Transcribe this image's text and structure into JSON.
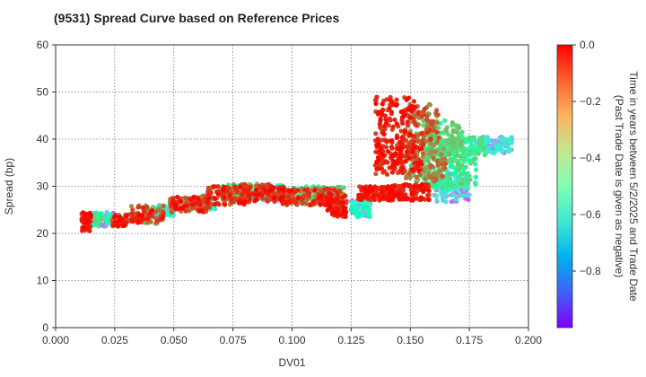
{
  "chart_data": {
    "type": "scatter",
    "title": "(9531)   Spread Curve based on Reference Prices",
    "xlabel": "DV01",
    "ylabel": "Spread (bp)",
    "xlim": [
      0.0,
      0.2
    ],
    "ylim": [
      0,
      60
    ],
    "x_ticks": [
      "0.000",
      "0.025",
      "0.050",
      "0.075",
      "0.100",
      "0.125",
      "0.150",
      "0.175",
      "0.200"
    ],
    "y_ticks": [
      "0",
      "10",
      "20",
      "30",
      "40",
      "50",
      "60"
    ],
    "grid": true,
    "colorbar": {
      "label_line1": "Time in years between 5/2/2025 and Trade Date",
      "label_line2": "(Past Trade Date is given as negative)",
      "range": [
        -1.0,
        0.0
      ],
      "ticks": [
        "0.0",
        "−0.2",
        "−0.4",
        "−0.6",
        "−0.8"
      ],
      "colormap": "rainbow"
    },
    "clusters": [
      {
        "x": [
          0.011,
          0.015
        ],
        "y": [
          20.5,
          24.5
        ],
        "t": [
          -0.1,
          0.0
        ]
      },
      {
        "x": [
          0.015,
          0.025
        ],
        "y": [
          21.5,
          24.5
        ],
        "t": [
          -0.9,
          -0.3
        ]
      },
      {
        "x": [
          0.024,
          0.031
        ],
        "y": [
          21.5,
          24.0
        ],
        "t": [
          -0.3,
          0.0
        ]
      },
      {
        "x": [
          0.032,
          0.046
        ],
        "y": [
          22.0,
          26.0
        ],
        "t": [
          -0.3,
          0.0
        ]
      },
      {
        "x": [
          0.042,
          0.05
        ],
        "y": [
          23.5,
          26.0
        ],
        "t": [
          -0.9,
          -0.5
        ]
      },
      {
        "x": [
          0.048,
          0.066
        ],
        "y": [
          24.5,
          28.0
        ],
        "t": [
          -0.2,
          0.0
        ]
      },
      {
        "x": [
          0.055,
          0.068
        ],
        "y": [
          25.0,
          27.5
        ],
        "t": [
          -0.9,
          -0.4
        ]
      },
      {
        "x": [
          0.064,
          0.08
        ],
        "y": [
          26.0,
          30.0
        ],
        "t": [
          -0.2,
          0.0
        ]
      },
      {
        "x": [
          0.07,
          0.09
        ],
        "y": [
          27.0,
          30.5
        ],
        "t": [
          -0.6,
          -0.2
        ]
      },
      {
        "x": [
          0.078,
          0.097
        ],
        "y": [
          26.5,
          30.5
        ],
        "t": [
          -0.15,
          0.0
        ]
      },
      {
        "x": [
          0.085,
          0.098
        ],
        "y": [
          27.0,
          30.5
        ],
        "t": [
          -0.9,
          -0.5
        ]
      },
      {
        "x": [
          0.095,
          0.122
        ],
        "y": [
          26.0,
          29.5
        ],
        "t": [
          -0.2,
          0.0
        ]
      },
      {
        "x": [
          0.1,
          0.122
        ],
        "y": [
          26.5,
          30.0
        ],
        "t": [
          -0.55,
          -0.25
        ]
      },
      {
        "x": [
          0.115,
          0.123
        ],
        "y": [
          23.5,
          28.0
        ],
        "t": [
          -0.1,
          0.0
        ]
      },
      {
        "x": [
          0.125,
          0.133
        ],
        "y": [
          23.5,
          27.0
        ],
        "t": [
          -0.9,
          -0.5
        ]
      },
      {
        "x": [
          0.135,
          0.152
        ],
        "y": [
          38.0,
          49.0
        ],
        "t": [
          -0.1,
          0.0
        ]
      },
      {
        "x": [
          0.148,
          0.163
        ],
        "y": [
          38.5,
          47.5
        ],
        "t": [
          -0.25,
          -0.05
        ]
      },
      {
        "x": [
          0.155,
          0.172
        ],
        "y": [
          36.0,
          44.0
        ],
        "t": [
          -0.45,
          -0.25
        ]
      },
      {
        "x": [
          0.135,
          0.155
        ],
        "y": [
          32.5,
          39.0
        ],
        "t": [
          -0.12,
          0.0
        ]
      },
      {
        "x": [
          0.148,
          0.165
        ],
        "y": [
          31.0,
          38.0
        ],
        "t": [
          -0.3,
          -0.1
        ]
      },
      {
        "x": [
          0.16,
          0.182
        ],
        "y": [
          36.5,
          40.5
        ],
        "t": [
          -0.55,
          -0.3
        ]
      },
      {
        "x": [
          0.175,
          0.193
        ],
        "y": [
          37.0,
          40.5
        ],
        "t": [
          -0.9,
          -0.55
        ]
      },
      {
        "x": [
          0.155,
          0.178
        ],
        "y": [
          29.5,
          36.0
        ],
        "t": [
          -0.5,
          -0.3
        ]
      },
      {
        "x": [
          0.16,
          0.175
        ],
        "y": [
          26.5,
          33.0
        ],
        "t": [
          -0.9,
          -0.6
        ]
      },
      {
        "x": [
          0.14,
          0.158
        ],
        "y": [
          27.0,
          30.5
        ],
        "t": [
          -0.1,
          0.0
        ]
      },
      {
        "x": [
          0.128,
          0.141
        ],
        "y": [
          27.0,
          30.0
        ],
        "t": [
          -0.1,
          0.0
        ]
      }
    ]
  }
}
